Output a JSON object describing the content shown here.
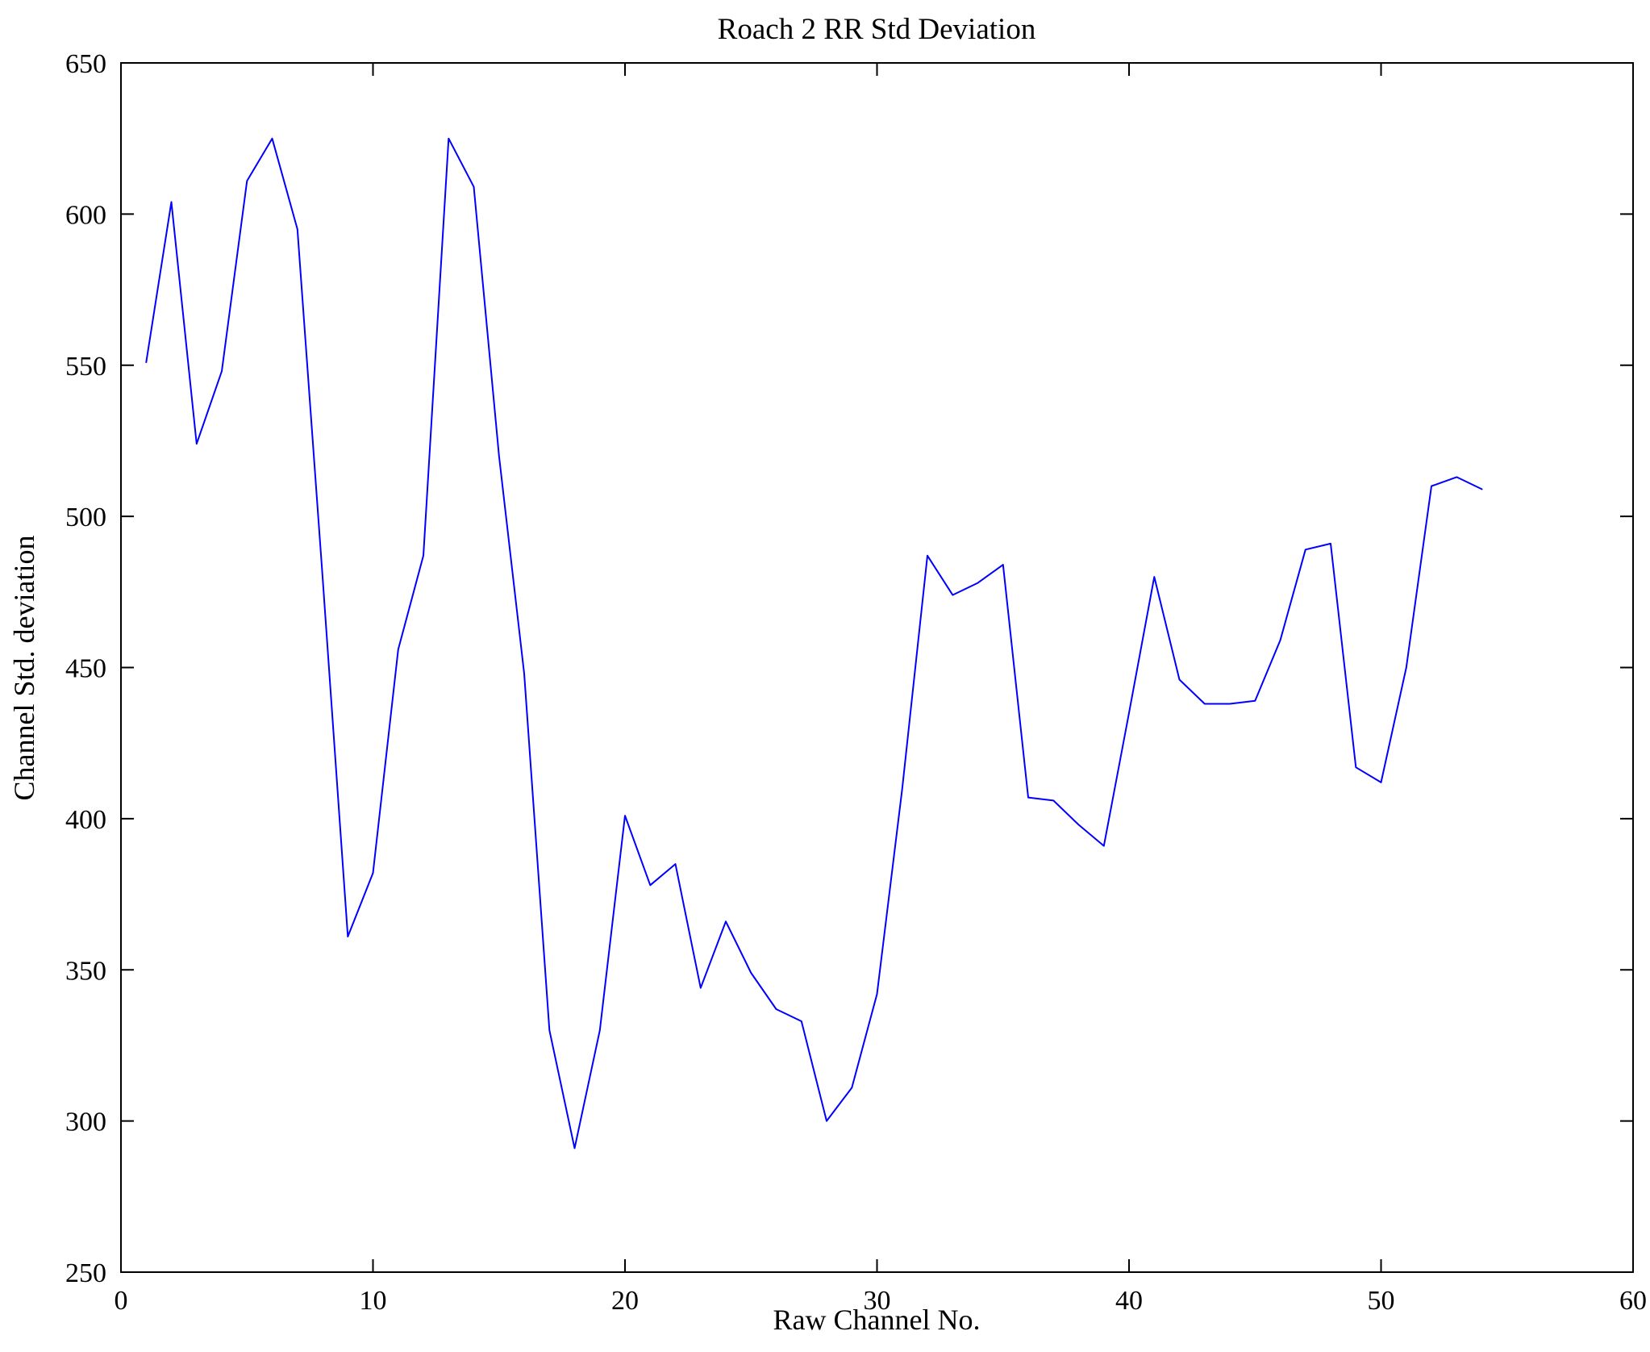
{
  "chart_data": {
    "type": "line",
    "title": "Roach 2 RR Std Deviation",
    "xlabel": "Raw Channel No.",
    "ylabel": "Channel Std. deviation",
    "xlim": [
      0,
      60
    ],
    "ylim": [
      250,
      650
    ],
    "xticks": [
      0,
      10,
      20,
      30,
      40,
      50,
      60
    ],
    "yticks": [
      250,
      300,
      350,
      400,
      450,
      500,
      550,
      600,
      650
    ],
    "grid": false,
    "legend": "none",
    "line_color": "#0000ff",
    "axis_color": "#000000",
    "x": [
      1,
      2,
      3,
      4,
      5,
      6,
      7,
      8,
      9,
      10,
      11,
      12,
      13,
      14,
      15,
      16,
      17,
      18,
      19,
      20,
      21,
      22,
      23,
      24,
      25,
      26,
      27,
      28,
      29,
      30,
      31,
      32,
      33,
      34,
      35,
      36,
      37,
      38,
      39,
      40,
      41,
      42,
      43,
      44,
      45,
      46,
      47,
      48,
      49,
      50,
      51,
      52,
      53,
      54
    ],
    "y": [
      551,
      604,
      524,
      548,
      611,
      625,
      595,
      480,
      361,
      382,
      456,
      487,
      625,
      609,
      520,
      448,
      330,
      291,
      330,
      401,
      378,
      385,
      344,
      366,
      349,
      337,
      333,
      300,
      311,
      342,
      410,
      487,
      474,
      478,
      484,
      407,
      406,
      398,
      391,
      435,
      480,
      446,
      438,
      438,
      439,
      459,
      489,
      491,
      417,
      412,
      450,
      510,
      513,
      509
    ]
  }
}
